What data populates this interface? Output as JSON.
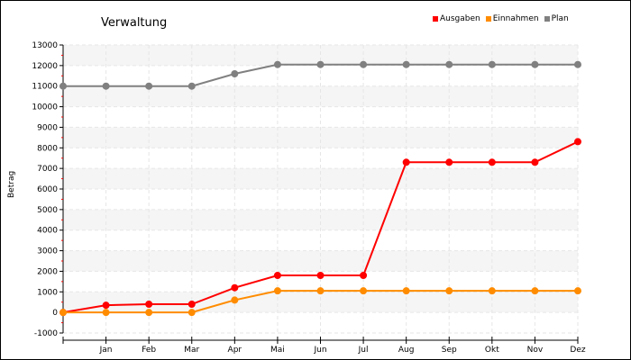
{
  "chart_data": {
    "type": "line",
    "title": "Verwaltung",
    "xlabel": "",
    "ylabel": "Betrag",
    "ylim": [
      -1000,
      13000
    ],
    "yticks": [
      -1000,
      0,
      1000,
      2000,
      3000,
      4000,
      5000,
      6000,
      7000,
      8000,
      9000,
      10000,
      11000,
      12000,
      13000
    ],
    "x_tick_labels": [
      "",
      "Jan",
      "Feb",
      "Mar",
      "Apr",
      "Mai",
      "Jun",
      "Jul",
      "Aug",
      "Sep",
      "Okt",
      "Nov",
      "Dez"
    ],
    "grid": true,
    "legend_position": "top-right",
    "series": [
      {
        "name": "Ausgaben",
        "color": "#ff0000",
        "values": [
          0,
          350,
          400,
          400,
          1200,
          1800,
          1800,
          1800,
          7300,
          7300,
          7300,
          7300,
          8300
        ]
      },
      {
        "name": "Einnahmen",
        "color": "#ff8c00",
        "values": [
          0,
          0,
          0,
          0,
          600,
          1050,
          1050,
          1050,
          1050,
          1050,
          1050,
          1050,
          1050
        ]
      },
      {
        "name": "Plan",
        "color": "#808080",
        "values": [
          11000,
          11000,
          11000,
          11000,
          11600,
          12050,
          12050,
          12050,
          12050,
          12050,
          12050,
          12050,
          12050
        ]
      }
    ]
  }
}
